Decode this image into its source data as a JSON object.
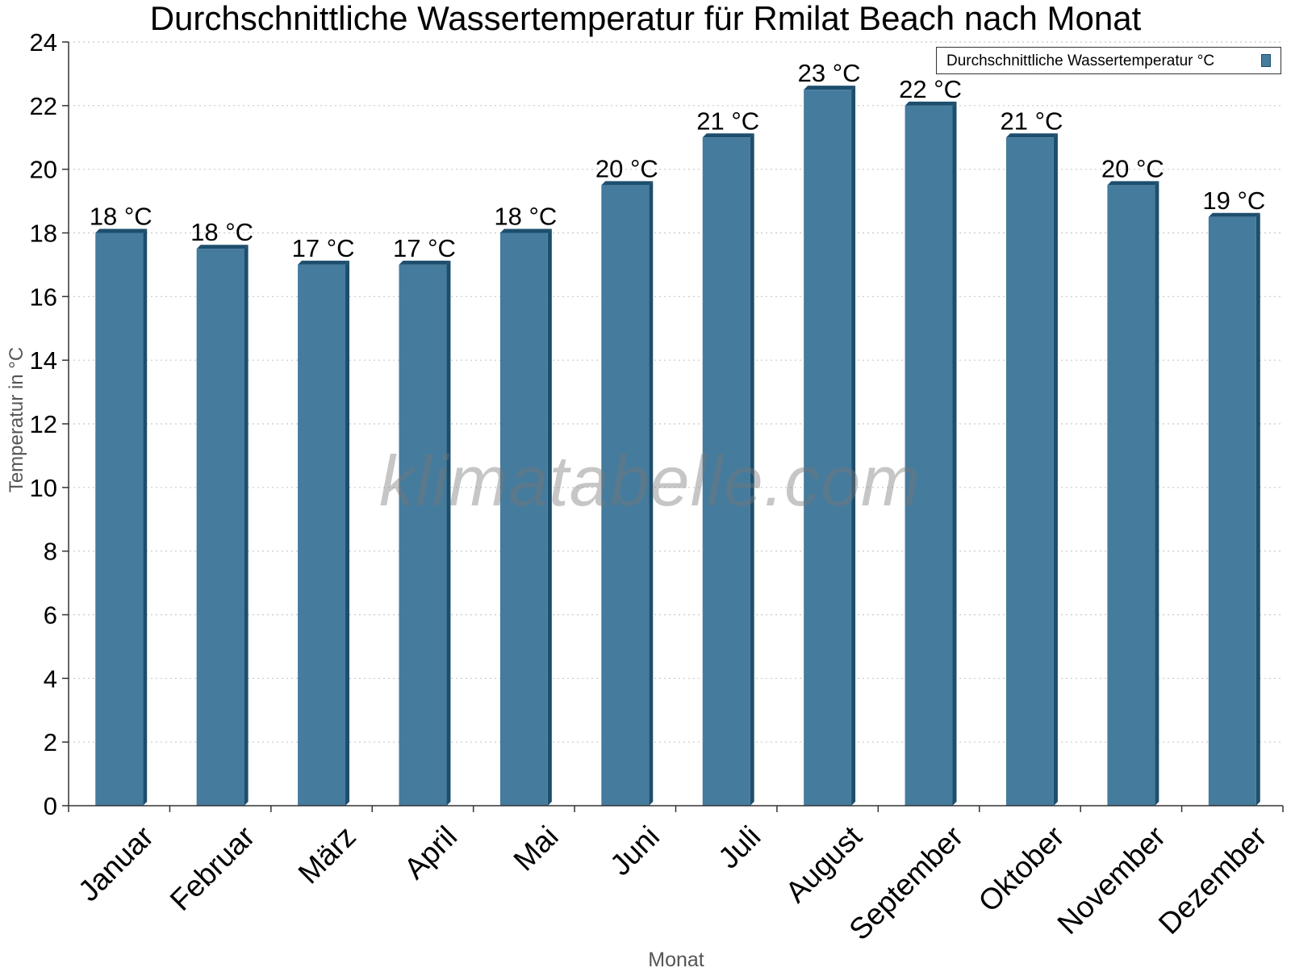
{
  "chart_data": {
    "type": "bar",
    "title": "Durchschnittliche Wassertemperatur für Rmilat Beach nach Monat",
    "xlabel": "Monat",
    "ylabel": "Temperatur in °C",
    "categories": [
      "Januar",
      "Februar",
      "März",
      "April",
      "Mai",
      "Juni",
      "Juli",
      "August",
      "September",
      "Oktober",
      "November",
      "Dezember"
    ],
    "series": [
      {
        "name": "Durchschnittliche Wassertemperatur °C",
        "values": [
          18,
          17.5,
          17,
          17,
          18,
          19.5,
          21,
          22.5,
          22,
          21,
          19.5,
          18.5
        ],
        "labels": [
          "18 °C",
          "18 °C",
          "17 °C",
          "17 °C",
          "18 °C",
          "20 °C",
          "21 °C",
          "23 °C",
          "22 °C",
          "21 °C",
          "20 °C",
          "19 °C"
        ],
        "color": "#457b9d",
        "edge_color": "#1d4e6d"
      }
    ],
    "ylim": [
      0,
      24
    ],
    "yticks": [
      0,
      2,
      4,
      6,
      8,
      10,
      12,
      14,
      16,
      18,
      20,
      22,
      24
    ],
    "grid": "horizontal dotted",
    "legend_position": "top-right",
    "watermark": "klimatabelle.com"
  }
}
